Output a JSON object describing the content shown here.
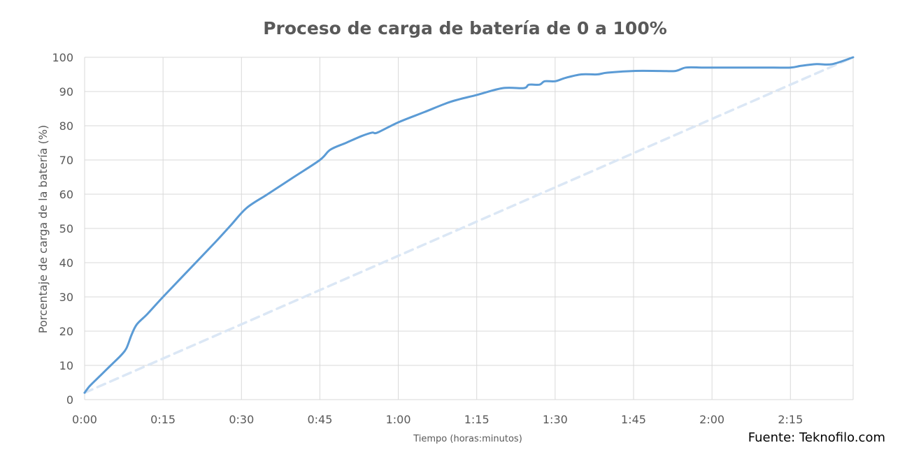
{
  "chart_data": {
    "type": "line",
    "title": "Proceso de carga de batería de 0 a 100%",
    "xlabel": "Tiempo (horas:minutos)",
    "ylabel": "Porcentaje de carga de la batería (%)",
    "source": "Fuente: Teknofilo.com",
    "x_tick_labels": [
      "0:00",
      "0:15",
      "0:30",
      "0:45",
      "1:00",
      "1:15",
      "1:30",
      "1:45",
      "2:00",
      "2:15"
    ],
    "x_tick_minutes": [
      0,
      15,
      30,
      45,
      60,
      75,
      90,
      105,
      120,
      135
    ],
    "y_tick_labels": [
      "0",
      "10",
      "20",
      "30",
      "40",
      "50",
      "60",
      "70",
      "80",
      "90",
      "100"
    ],
    "xlim_minutes": [
      0,
      147
    ],
    "ylim": [
      0,
      100
    ],
    "grid": true,
    "series": [
      {
        "style": "solid",
        "color": "#5b9bd5",
        "x_minutes": [
          0,
          1,
          3,
          5,
          7,
          8,
          9,
          10,
          12,
          15,
          20,
          25,
          28,
          31,
          35,
          40,
          45,
          47,
          50,
          53,
          55,
          56,
          60,
          65,
          70,
          75,
          80,
          84,
          85,
          87,
          88,
          90,
          92,
          95,
          98,
          100,
          105,
          110,
          113,
          115,
          118,
          120,
          125,
          130,
          135,
          137,
          140,
          143,
          147
        ],
        "y_values": [
          2,
          4,
          7,
          10,
          13,
          15,
          19,
          22,
          25,
          30,
          38,
          46,
          51,
          56,
          60,
          65,
          70,
          73,
          75,
          77,
          78,
          78,
          81,
          84,
          87,
          89,
          91,
          91,
          92,
          92,
          93,
          93,
          94,
          95,
          95,
          95.5,
          96,
          96,
          96,
          97,
          97,
          97,
          97,
          97,
          97,
          97.5,
          98,
          98,
          100
        ]
      },
      {
        "style": "dashed",
        "color": "#dbe7f5",
        "x_minutes": [
          0,
          147
        ],
        "y_values": [
          2,
          100
        ]
      }
    ]
  }
}
